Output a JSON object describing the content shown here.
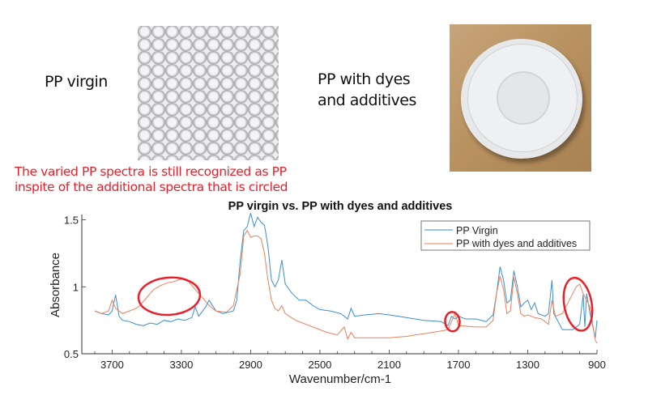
{
  "slide": {
    "label_virgin": "PP virgin",
    "label_dyes_line1": "PP with dyes",
    "label_dyes_line2": "and additives",
    "note_line1": "The varied PP spectra is still recognized as PP",
    "note_line2": "inspite of the additional spectra that is circled",
    "note_color": "#e8202a"
  },
  "chart_data": {
    "type": "line",
    "title": "PP virgin vs. PP with dyes and additives",
    "xlabel": "Wavenumber/cm-1",
    "ylabel": "Absorbance",
    "xlim": [
      3875,
      900
    ],
    "x_reversed": true,
    "ylim": [
      0.5,
      1.54
    ],
    "xticks": [
      3700,
      3300,
      2900,
      2500,
      2100,
      1700,
      1300,
      900
    ],
    "yticks": [
      0.5,
      1,
      1.5
    ],
    "ytick_labels": [
      "0.5",
      "1",
      "1.5"
    ],
    "grid": false,
    "legend_position": "top-right",
    "series": [
      {
        "name": "PP Virgin",
        "color": "#3b8fd0",
        "x": [
          3800,
          3760,
          3720,
          3700,
          3680,
          3660,
          3640,
          3600,
          3560,
          3520,
          3480,
          3440,
          3400,
          3360,
          3320,
          3280,
          3240,
          3220,
          3200,
          3160,
          3140,
          3100,
          3060,
          3000,
          2980,
          2960,
          2940,
          2920,
          2900,
          2880,
          2860,
          2840,
          2820,
          2800,
          2780,
          2760,
          2740,
          2720,
          2700,
          2660,
          2620,
          2580,
          2540,
          2500,
          2440,
          2380,
          2340,
          2320,
          2300,
          2240,
          2160,
          2100,
          2000,
          1900,
          1800,
          1760,
          1740,
          1720,
          1700,
          1660,
          1600,
          1540,
          1500,
          1480,
          1460,
          1440,
          1420,
          1400,
          1380,
          1360,
          1340,
          1320,
          1300,
          1280,
          1260,
          1240,
          1200,
          1180,
          1160,
          1150,
          1120,
          1100,
          1080,
          1040,
          1000,
          980,
          970,
          960,
          940,
          920,
          910,
          900
        ],
        "y": [
          0.82,
          0.8,
          0.79,
          0.82,
          0.94,
          0.78,
          0.75,
          0.74,
          0.72,
          0.71,
          0.73,
          0.72,
          0.75,
          0.74,
          0.76,
          0.75,
          0.77,
          0.85,
          0.78,
          0.85,
          0.9,
          0.82,
          0.8,
          0.82,
          0.9,
          1.2,
          1.42,
          1.45,
          1.55,
          1.45,
          1.52,
          1.48,
          1.46,
          1.3,
          1.05,
          1.0,
          1.05,
          1.2,
          1.02,
          0.95,
          0.9,
          0.9,
          0.86,
          0.83,
          0.82,
          0.8,
          0.76,
          0.84,
          0.78,
          0.79,
          0.8,
          0.79,
          0.77,
          0.75,
          0.74,
          0.71,
          0.78,
          0.76,
          0.78,
          0.76,
          0.76,
          0.74,
          0.79,
          0.95,
          1.15,
          1.05,
          0.88,
          0.9,
          1.12,
          1.0,
          0.85,
          0.88,
          0.9,
          0.83,
          0.88,
          0.8,
          0.78,
          0.8,
          1.05,
          0.8,
          0.73,
          0.68,
          0.68,
          0.68,
          0.72,
          0.94,
          0.7,
          0.95,
          0.8,
          0.68,
          0.62,
          0.75
        ]
      },
      {
        "name": "PP with dyes and additives",
        "color": "#e8825a",
        "x": [
          3800,
          3760,
          3720,
          3700,
          3680,
          3640,
          3600,
          3560,
          3540,
          3500,
          3460,
          3420,
          3380,
          3340,
          3300,
          3260,
          3220,
          3180,
          3140,
          3100,
          3040,
          3000,
          2960,
          2940,
          2920,
          2900,
          2880,
          2860,
          2840,
          2820,
          2800,
          2780,
          2760,
          2740,
          2720,
          2700,
          2640,
          2580,
          2520,
          2460,
          2400,
          2360,
          2340,
          2320,
          2300,
          2200,
          2100,
          2000,
          1900,
          1800,
          1760,
          1740,
          1720,
          1700,
          1600,
          1540,
          1500,
          1480,
          1460,
          1440,
          1420,
          1400,
          1380,
          1360,
          1340,
          1320,
          1300,
          1260,
          1220,
          1200,
          1180,
          1160,
          1140,
          1100,
          1060,
          1020,
          1000,
          980,
          960,
          940,
          920,
          910,
          900
        ],
        "y": [
          0.82,
          0.8,
          0.82,
          0.9,
          0.84,
          0.8,
          0.82,
          0.84,
          0.86,
          0.92,
          0.98,
          1.01,
          1.03,
          1.04,
          1.06,
          1.04,
          0.98,
          0.92,
          0.86,
          0.82,
          0.81,
          0.86,
          1.1,
          1.38,
          1.42,
          1.37,
          1.38,
          1.38,
          1.36,
          1.25,
          1.05,
          0.9,
          0.84,
          0.82,
          0.86,
          0.8,
          0.75,
          0.72,
          0.69,
          0.66,
          0.64,
          0.7,
          0.61,
          0.66,
          0.62,
          0.62,
          0.62,
          0.63,
          0.65,
          0.67,
          0.68,
          0.74,
          0.8,
          0.71,
          0.7,
          0.7,
          0.75,
          0.95,
          1.08,
          0.98,
          0.8,
          0.82,
          1.07,
          0.95,
          0.8,
          0.78,
          0.79,
          0.77,
          0.76,
          0.74,
          0.72,
          0.9,
          0.78,
          0.8,
          0.9,
          1.0,
          1.02,
          0.95,
          0.9,
          0.85,
          0.68,
          0.6,
          0.58
        ]
      }
    ],
    "annotations": [
      {
        "shape": "circle",
        "color": "#e8202a",
        "center_x": 3370,
        "center_y": 0.93
      },
      {
        "shape": "circle",
        "color": "#e8202a",
        "center_x": 1735,
        "center_y": 0.74
      },
      {
        "shape": "circle",
        "color": "#e8202a",
        "center_x": 1010,
        "center_y": 0.87
      }
    ]
  }
}
